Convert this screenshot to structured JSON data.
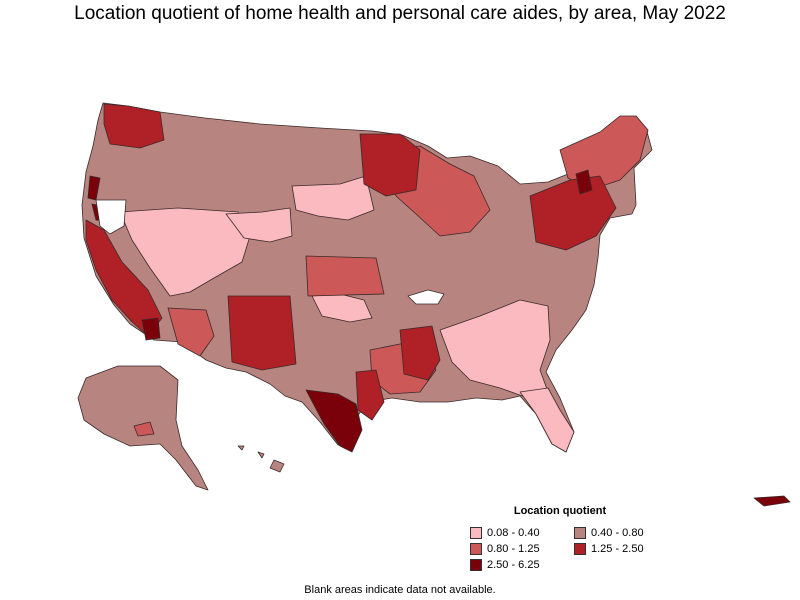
{
  "title": "Location quotient of home health and personal care aides, by area, May 2022",
  "legend": {
    "title": "Location quotient",
    "items": [
      {
        "label": "0.08 - 0.40",
        "color": "#fbb9c0"
      },
      {
        "label": "0.40 - 0.80",
        "color": "#b8847f"
      },
      {
        "label": "0.80 - 1.25",
        "color": "#cc5858"
      },
      {
        "label": "1.25 - 2.50",
        "color": "#b02027"
      },
      {
        "label": "2.50 - 6.25",
        "color": "#7a000a"
      }
    ]
  },
  "footnote": "Blank areas indicate data not available.",
  "colors": {
    "blank": "#ffffff",
    "border": "#3a2a2a"
  }
}
